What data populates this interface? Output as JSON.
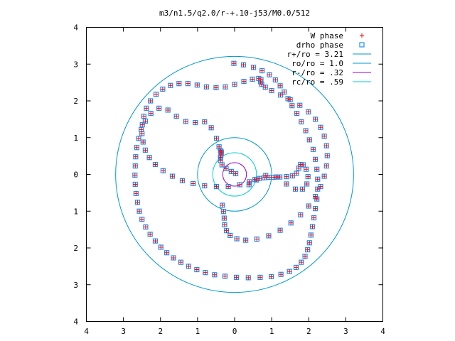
{
  "chart_data": {
    "type": "scatter",
    "title": "m3/n1.5/q2.0/r-+.10-j53/M0.0/512",
    "xlabel": "",
    "ylabel": "",
    "xlim": [
      -4,
      4
    ],
    "ylim": [
      -4,
      4
    ],
    "x_tick_labels": [
      "4",
      "3",
      "2",
      "1",
      "0",
      "1",
      "2",
      "3",
      "4"
    ],
    "y_tick_labels": [
      "4",
      "3",
      "2",
      "1",
      "0",
      "1",
      "2",
      "3",
      "4"
    ],
    "grid": false,
    "legend_position": "top-right",
    "legend": [
      {
        "label": "W phase",
        "kind": "point-plus",
        "color": "#ff0000"
      },
      {
        "label": "drho phase",
        "kind": "point-square",
        "color": "#1e90ff"
      },
      {
        "label": "r+/ro = 3.21",
        "kind": "line",
        "color": "#0099cc"
      },
      {
        "label": "ro/ro = 1.0",
        "kind": "line",
        "color": "#0099cc"
      },
      {
        "label": "r-/ro = .32",
        "kind": "line",
        "color": "#9900cc"
      },
      {
        "label": "rc/ro = .59",
        "kind": "line",
        "color": "#00cccc"
      }
    ],
    "circles": [
      {
        "name": "r+/ro = 3.21",
        "radius": 3.21,
        "color": "#0099cc"
      },
      {
        "name": "ro/ro = 1.0",
        "radius": 1.0,
        "color": "#0099cc"
      },
      {
        "name": "r-/ro = .32",
        "radius": 0.32,
        "color": "#9900cc"
      },
      {
        "name": "rc/ro = .59",
        "radius": 0.59,
        "color": "#00cccc"
      }
    ],
    "series": [
      {
        "name": "drho phase",
        "marker": "square",
        "color": "#1e90ff",
        "x": [
          -0.02,
          0.24,
          0.51,
          0.74,
          0.94,
          1.1,
          1.23,
          1.34,
          1.44,
          1.55,
          1.68,
          1.8,
          1.92,
          2.02,
          2.12,
          2.18,
          2.22,
          2.24,
          2.24,
          2.22,
          2.18,
          2.14,
          2.1,
          2.06,
          2.02,
          1.97,
          1.9,
          1.8,
          1.66,
          1.48,
          1.25,
          0.99,
          0.69,
          0.37,
          0.05,
          -0.26,
          -0.54,
          -0.79,
          -1.02,
          -1.24,
          -1.45,
          -1.65,
          -1.83,
          -1.99,
          -2.14,
          -2.28,
          -2.4,
          -2.5,
          -2.57,
          -2.62,
          -2.66,
          -2.68,
          -2.69,
          -2.68,
          -2.67,
          -2.64,
          -2.59,
          -2.52,
          -2.41,
          -2.26,
          -2.04,
          -1.8,
          -1.57,
          -1.32,
          -1.06,
          -0.81,
          -0.63,
          -0.49,
          -0.42,
          -0.38,
          -0.36,
          -0.36,
          -0.37,
          -0.38,
          -0.38,
          -0.34,
          -0.23,
          -0.09,
          0.03
        ],
        "y": [
          3.02,
          2.98,
          2.91,
          2.82,
          2.71,
          2.57,
          2.41,
          2.24,
          2.06,
          1.87,
          1.66,
          1.43,
          1.19,
          0.94,
          0.68,
          0.41,
          0.14,
          -0.13,
          -0.4,
          -0.67,
          -0.93,
          -1.18,
          -1.42,
          -1.65,
          -1.86,
          -2.05,
          -2.23,
          -2.39,
          -2.53,
          -2.64,
          -2.72,
          -2.78,
          -2.8,
          -2.81,
          -2.8,
          -2.77,
          -2.73,
          -2.67,
          -2.59,
          -2.5,
          -2.39,
          -2.27,
          -2.13,
          -1.98,
          -1.81,
          -1.63,
          -1.43,
          -1.22,
          -1.0,
          -0.76,
          -0.52,
          -0.27,
          -0.02,
          0.23,
          0.48,
          0.73,
          0.98,
          1.22,
          1.45,
          1.66,
          1.8,
          1.75,
          1.58,
          1.44,
          1.41,
          1.43,
          1.27,
          0.98,
          0.75,
          0.65,
          0.61,
          0.58,
          0.53,
          0.46,
          0.38,
          0.26,
          0.16,
          0.08,
          0.02
        ]
      },
      {
        "name": "drho phase",
        "marker": "square",
        "color": "#1e90ff",
        "x": [
          0.39,
          0.59,
          0.84,
          1.13,
          1.4,
          1.64,
          1.83,
          1.95,
          1.98,
          1.93,
          1.85,
          1.78,
          1.73,
          1.67,
          1.56,
          1.4,
          1.22,
          1.06,
          0.93,
          0.8,
          0.67,
          0.55,
          0.4,
          0.14,
          -0.17,
          -0.49,
          -0.81,
          -1.12,
          -1.41,
          -1.68,
          -1.93,
          -2.14,
          -2.3,
          -2.41,
          -2.47,
          -2.5,
          -2.49,
          -2.45,
          -2.38,
          -2.27,
          -2.12,
          -1.94,
          -1.73,
          -1.5,
          -1.26,
          -1.01,
          -0.76,
          -0.5,
          -0.25,
          0.0,
          0.25,
          0.48,
          0.65,
          0.71,
          0.7,
          0.73,
          0.83,
          1.0,
          1.24,
          1.5,
          1.76,
          1.99,
          2.18,
          2.32,
          2.42,
          2.48,
          2.5,
          2.48,
          2.42,
          2.32,
          2.18,
          2.0,
          1.78,
          1.52,
          1.23,
          0.92,
          0.6,
          0.3,
          0.06,
          -0.12,
          -0.22,
          -0.27,
          -0.28,
          -0.3,
          -0.33
        ],
        "y": [
          -0.28,
          -0.15,
          -0.03,
          -0.07,
          -0.26,
          -0.4,
          -0.4,
          -0.26,
          -0.06,
          0.14,
          0.26,
          0.27,
          0.17,
          0.03,
          -0.04,
          -0.06,
          -0.07,
          -0.08,
          -0.08,
          -0.09,
          -0.11,
          -0.14,
          -0.2,
          -0.28,
          -0.33,
          -0.33,
          -0.31,
          -0.25,
          -0.17,
          -0.05,
          0.1,
          0.27,
          0.46,
          0.66,
          0.88,
          1.11,
          1.35,
          1.58,
          1.8,
          2.0,
          2.18,
          2.32,
          2.42,
          2.47,
          2.47,
          2.43,
          2.38,
          2.36,
          2.38,
          2.45,
          2.53,
          2.59,
          2.61,
          2.58,
          2.52,
          2.45,
          2.37,
          2.28,
          2.16,
          2.03,
          1.88,
          1.7,
          1.5,
          1.28,
          1.04,
          0.78,
          0.51,
          0.23,
          -0.05,
          -0.33,
          -0.6,
          -0.86,
          -1.1,
          -1.32,
          -1.52,
          -1.67,
          -1.76,
          -1.79,
          -1.75,
          -1.66,
          -1.53,
          -1.37,
          -1.19,
          -1.01,
          -0.84
        ]
      },
      {
        "name": "W phase",
        "marker": "plus",
        "color": "#ff0000",
        "x": [
          -0.02,
          0.24,
          0.51,
          0.74,
          0.94,
          1.1,
          1.23,
          1.34,
          1.44,
          1.55,
          1.68,
          1.8,
          1.92,
          2.02,
          2.12,
          2.18,
          2.22,
          2.24,
          2.24,
          2.22,
          2.18,
          2.14,
          2.1,
          2.06,
          2.02,
          1.97,
          1.9,
          1.8,
          1.66,
          1.48,
          1.25,
          0.99,
          0.69,
          0.37,
          0.05,
          -0.26,
          -0.54,
          -0.79,
          -1.02,
          -1.24,
          -1.45,
          -1.65,
          -1.83,
          -1.99,
          -2.14,
          -2.28,
          -2.4,
          -2.5,
          -2.57,
          -2.62,
          -2.66,
          -2.68,
          -2.69,
          -2.68,
          -2.67,
          -2.64,
          -2.59,
          -2.52,
          -2.41,
          -2.26,
          -2.04,
          -1.8,
          -1.57,
          -1.32,
          -1.06,
          -0.81,
          -0.63,
          -0.49,
          -0.42,
          -0.38,
          -0.36,
          -0.36,
          -0.37,
          -0.38,
          -0.38,
          -0.34,
          -0.23,
          -0.09,
          0.03
        ],
        "y": [
          3.02,
          2.98,
          2.91,
          2.82,
          2.71,
          2.57,
          2.41,
          2.24,
          2.06,
          1.87,
          1.66,
          1.43,
          1.19,
          0.94,
          0.68,
          0.41,
          0.14,
          -0.13,
          -0.4,
          -0.67,
          -0.93,
          -1.18,
          -1.42,
          -1.65,
          -1.86,
          -2.05,
          -2.23,
          -2.39,
          -2.53,
          -2.64,
          -2.72,
          -2.78,
          -2.8,
          -2.81,
          -2.8,
          -2.77,
          -2.73,
          -2.67,
          -2.59,
          -2.5,
          -2.39,
          -2.27,
          -2.13,
          -1.98,
          -1.81,
          -1.63,
          -1.43,
          -1.22,
          -1.0,
          -0.76,
          -0.52,
          -0.27,
          -0.02,
          0.23,
          0.48,
          0.73,
          0.98,
          1.22,
          1.45,
          1.66,
          1.8,
          1.75,
          1.58,
          1.44,
          1.41,
          1.43,
          1.27,
          0.98,
          0.75,
          0.65,
          0.61,
          0.58,
          0.53,
          0.46,
          0.38,
          0.26,
          0.16,
          0.08,
          0.02
        ]
      },
      {
        "name": "W phase",
        "marker": "plus",
        "color": "#ff0000",
        "x": [
          0.39,
          0.59,
          0.84,
          1.13,
          1.4,
          1.64,
          1.83,
          1.95,
          1.98,
          1.93,
          1.85,
          1.78,
          1.73,
          1.67,
          1.56,
          1.4,
          1.22,
          1.06,
          0.93,
          0.8,
          0.67,
          0.55,
          0.4,
          0.14,
          -0.17,
          -0.49,
          -0.81,
          -1.12,
          -1.41,
          -1.68,
          -1.93,
          -2.14,
          -2.3,
          -2.41,
          -2.47,
          -2.5,
          -2.49,
          -2.45,
          -2.38,
          -2.27,
          -2.12,
          -1.94,
          -1.73,
          -1.5,
          -1.26,
          -1.01,
          -0.76,
          -0.5,
          -0.25,
          0.0,
          0.25,
          0.48,
          0.65,
          0.71,
          0.7,
          0.73,
          0.83,
          1.0,
          1.24,
          1.5,
          1.76,
          1.99,
          2.18,
          2.32,
          2.42,
          2.48,
          2.5,
          2.48,
          2.42,
          2.32,
          2.18,
          2.0,
          1.78,
          1.52,
          1.23,
          0.92,
          0.6,
          0.3,
          0.06,
          -0.12,
          -0.22,
          -0.27,
          -0.28,
          -0.3,
          -0.33
        ],
        "y": [
          -0.28,
          -0.15,
          -0.03,
          -0.07,
          -0.26,
          -0.4,
          -0.4,
          -0.26,
          -0.06,
          0.14,
          0.26,
          0.27,
          0.17,
          0.03,
          -0.04,
          -0.06,
          -0.07,
          -0.08,
          -0.08,
          -0.09,
          -0.11,
          -0.14,
          -0.2,
          -0.28,
          -0.33,
          -0.33,
          -0.31,
          -0.25,
          -0.17,
          -0.05,
          0.1,
          0.27,
          0.46,
          0.66,
          0.88,
          1.11,
          1.35,
          1.58,
          1.8,
          2.0,
          2.18,
          2.32,
          2.42,
          2.47,
          2.47,
          2.43,
          2.38,
          2.36,
          2.38,
          2.45,
          2.53,
          2.59,
          2.61,
          2.58,
          2.52,
          2.45,
          2.37,
          2.28,
          2.16,
          2.03,
          1.88,
          1.7,
          1.5,
          1.28,
          1.04,
          0.78,
          0.51,
          0.23,
          -0.05,
          -0.33,
          -0.6,
          -0.86,
          -1.1,
          -1.32,
          -1.52,
          -1.67,
          -1.76,
          -1.79,
          -1.75,
          -1.66,
          -1.53,
          -1.37,
          -1.19,
          -1.01,
          -0.84
        ]
      }
    ]
  }
}
